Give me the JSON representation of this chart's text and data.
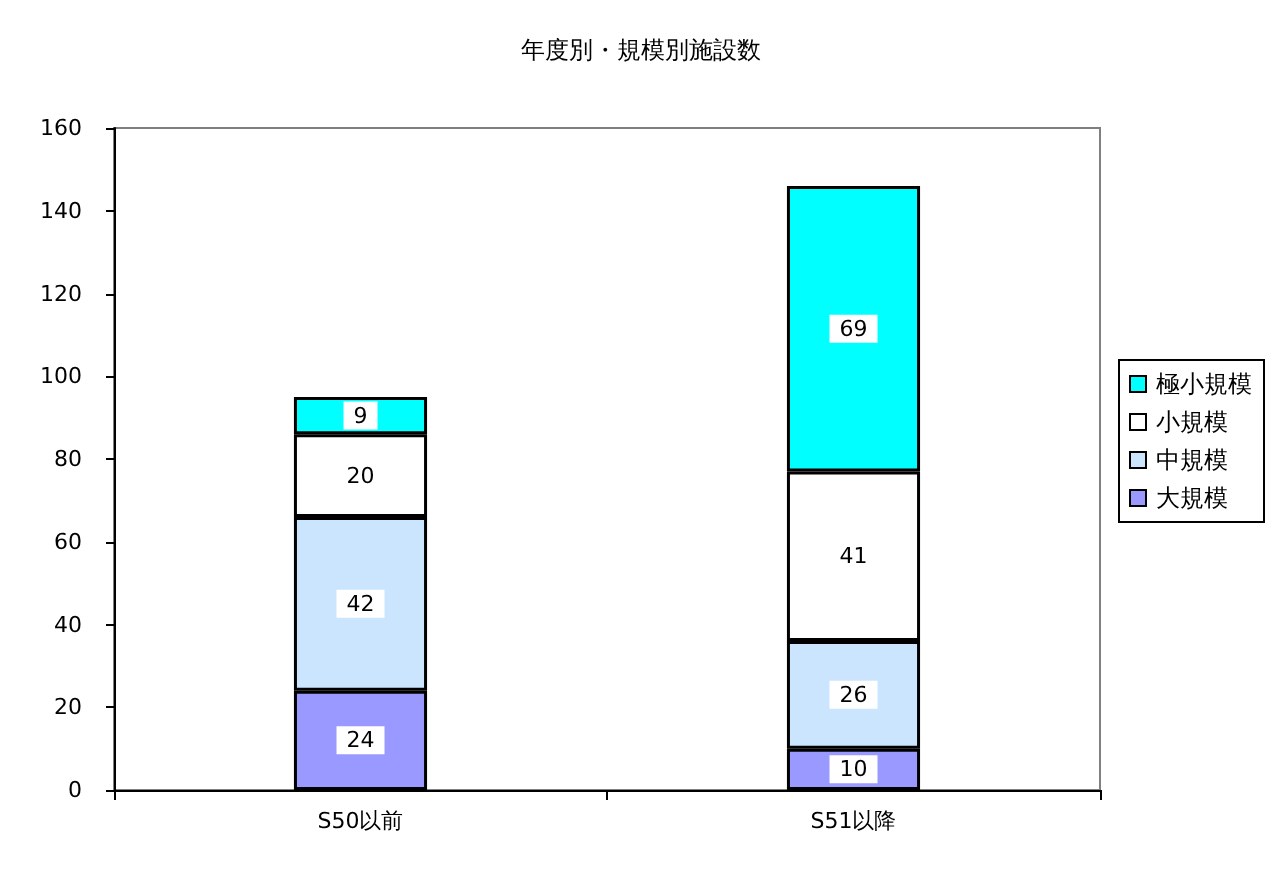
{
  "chart_data": {
    "type": "bar",
    "title": "年度別・規模別施設数",
    "categories": [
      "S50以前",
      "S51以降"
    ],
    "stacked": true,
    "series": [
      {
        "name": "大規模",
        "color": "#9999ff",
        "values": [
          24,
          10
        ]
      },
      {
        "name": "中規模",
        "color": "#cce5ff",
        "values": [
          42,
          26
        ]
      },
      {
        "name": "小規模",
        "color": "#ffffff",
        "values": [
          20,
          41
        ]
      },
      {
        "name": "極小規模",
        "color": "#00ffff",
        "values": [
          9,
          69
        ]
      }
    ],
    "ylim": [
      0,
      160
    ],
    "yticks": [
      0,
      20,
      40,
      60,
      80,
      100,
      120,
      140,
      160
    ],
    "grid": false,
    "legend": "right",
    "data_labels": true
  }
}
